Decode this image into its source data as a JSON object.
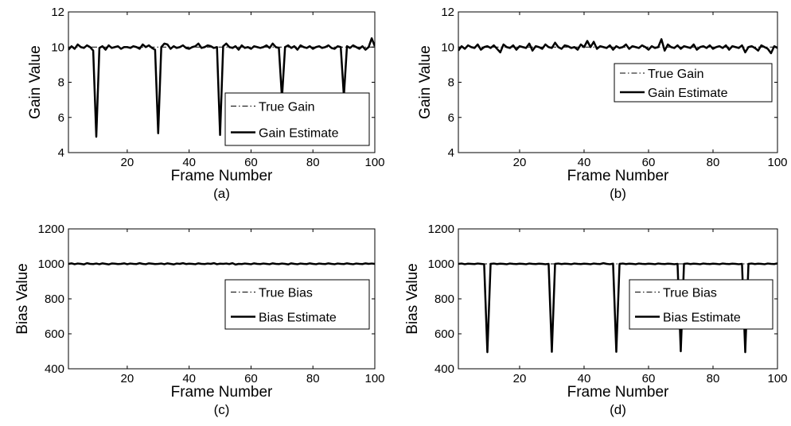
{
  "chart_data": [
    {
      "type": "line",
      "caption": "(a)",
      "xlabel": "Frame Number",
      "ylabel": "Gain Value",
      "xlim": [
        1,
        100
      ],
      "ylim": [
        4,
        12
      ],
      "xticks": [
        20,
        40,
        60,
        80,
        100
      ],
      "yticks": [
        4,
        6,
        8,
        10,
        12
      ],
      "xtick_labels": [
        "20",
        "40",
        "60",
        "80",
        "100"
      ],
      "ytick_labels": [
        "4",
        "6",
        "8",
        "10",
        "12"
      ],
      "grid": false,
      "legend_position": "lower-right",
      "series": [
        {
          "name": "True Gain",
          "style": "dash-dot",
          "width": 1,
          "x": [
            1,
            100
          ],
          "y": [
            10,
            10
          ]
        },
        {
          "name": "Gain Estimate",
          "style": "solid",
          "width": 2.5,
          "x": [
            1,
            2,
            3,
            4,
            5,
            6,
            7,
            8,
            9,
            10,
            11,
            12,
            13,
            14,
            15,
            16,
            17,
            18,
            19,
            20,
            21,
            22,
            23,
            24,
            25,
            26,
            27,
            28,
            29,
            30,
            31,
            32,
            33,
            34,
            35,
            36,
            37,
            38,
            39,
            40,
            41,
            42,
            43,
            44,
            45,
            46,
            47,
            48,
            49,
            50,
            51,
            52,
            53,
            54,
            55,
            56,
            57,
            58,
            59,
            60,
            61,
            62,
            63,
            64,
            65,
            66,
            67,
            68,
            69,
            70,
            71,
            72,
            73,
            74,
            75,
            76,
            77,
            78,
            79,
            80,
            81,
            82,
            83,
            84,
            85,
            86,
            87,
            88,
            89,
            90,
            91,
            92,
            93,
            94,
            95,
            96,
            97,
            98,
            99,
            100
          ],
          "y": [
            9.85,
            10.05,
            9.9,
            10.15,
            10.0,
            9.95,
            10.1,
            10.0,
            9.8,
            4.9,
            9.95,
            10.05,
            9.85,
            10.1,
            9.95,
            10.0,
            10.05,
            9.9,
            10.0,
            10.0,
            9.95,
            10.05,
            10.0,
            9.9,
            10.15,
            10.0,
            10.1,
            9.95,
            9.85,
            5.1,
            10.0,
            10.2,
            10.15,
            9.9,
            10.05,
            9.95,
            10.0,
            10.1,
            9.95,
            9.9,
            10.0,
            10.05,
            10.2,
            9.95,
            10.0,
            10.1,
            10.05,
            9.95,
            10.0,
            5.0,
            10.05,
            10.2,
            10.0,
            9.95,
            10.05,
            9.85,
            10.1,
            9.95,
            10.0,
            9.9,
            10.05,
            10.0,
            9.95,
            10.0,
            10.1,
            9.95,
            10.2,
            10.0,
            9.95,
            7.1,
            10.0,
            10.1,
            9.95,
            10.05,
            9.85,
            10.1,
            10.0,
            9.95,
            10.05,
            9.9,
            10.0,
            10.05,
            9.95,
            10.0,
            10.1,
            9.95,
            9.9,
            10.05,
            10.0,
            7.2,
            10.05,
            9.95,
            10.1,
            10.0,
            9.9,
            10.05,
            9.85,
            10.0,
            10.5,
            10.05
          ]
        }
      ]
    },
    {
      "type": "line",
      "caption": "(b)",
      "xlabel": "Frame Number",
      "ylabel": "Gain Value",
      "xlim": [
        1,
        100
      ],
      "ylim": [
        4,
        12
      ],
      "xticks": [
        20,
        40,
        60,
        80,
        100
      ],
      "yticks": [
        4,
        6,
        8,
        10,
        12
      ],
      "xtick_labels": [
        "20",
        "40",
        "60",
        "80",
        "100"
      ],
      "ytick_labels": [
        "4",
        "6",
        "8",
        "10",
        "12"
      ],
      "grid": false,
      "legend_position": "right",
      "series": [
        {
          "name": "True Gain",
          "style": "dash-dot",
          "width": 1,
          "x": [
            1,
            100
          ],
          "y": [
            10,
            10
          ]
        },
        {
          "name": "Gain Estimate",
          "style": "solid",
          "width": 2.5,
          "x": [
            1,
            2,
            3,
            4,
            5,
            6,
            7,
            8,
            9,
            10,
            11,
            12,
            13,
            14,
            15,
            16,
            17,
            18,
            19,
            20,
            21,
            22,
            23,
            24,
            25,
            26,
            27,
            28,
            29,
            30,
            31,
            32,
            33,
            34,
            35,
            36,
            37,
            38,
            39,
            40,
            41,
            42,
            43,
            44,
            45,
            46,
            47,
            48,
            49,
            50,
            51,
            52,
            53,
            54,
            55,
            56,
            57,
            58,
            59,
            60,
            61,
            62,
            63,
            64,
            65,
            66,
            67,
            68,
            69,
            70,
            71,
            72,
            73,
            74,
            75,
            76,
            77,
            78,
            79,
            80,
            81,
            82,
            83,
            84,
            85,
            86,
            87,
            88,
            89,
            90,
            91,
            92,
            93,
            94,
            95,
            96,
            97,
            98,
            99,
            100
          ],
          "y": [
            9.8,
            10.05,
            9.9,
            10.1,
            10.0,
            9.95,
            10.15,
            9.85,
            10.0,
            10.05,
            9.95,
            10.1,
            9.9,
            9.7,
            10.15,
            10.0,
            9.95,
            10.1,
            9.85,
            10.05,
            10.0,
            9.95,
            10.2,
            9.8,
            10.05,
            10.0,
            9.9,
            10.15,
            10.0,
            9.95,
            10.25,
            10.0,
            9.9,
            10.1,
            10.05,
            9.95,
            10.0,
            9.85,
            10.15,
            10.0,
            10.35,
            10.0,
            10.3,
            9.9,
            10.05,
            10.0,
            9.95,
            10.1,
            9.85,
            10.05,
            9.95,
            10.0,
            10.15,
            9.9,
            10.05,
            10.0,
            9.95,
            10.1,
            10.0,
            9.85,
            10.05,
            9.95,
            10.0,
            10.45,
            9.8,
            10.15,
            10.0,
            9.95,
            10.1,
            9.9,
            10.05,
            10.0,
            9.95,
            10.15,
            9.85,
            10.0,
            10.05,
            9.95,
            10.1,
            9.9,
            10.0,
            10.05,
            9.95,
            10.1,
            9.85,
            10.05,
            10.0,
            9.95,
            10.1,
            9.7,
            10.0,
            10.05,
            9.95,
            9.8,
            10.1,
            10.0,
            9.9,
            9.65,
            10.05,
            9.95
          ]
        }
      ]
    },
    {
      "type": "line",
      "caption": "(c)",
      "xlabel": "Frame Number",
      "ylabel": "Bias Value",
      "xlim": [
        1,
        100
      ],
      "ylim": [
        400,
        1200
      ],
      "xticks": [
        20,
        40,
        60,
        80,
        100
      ],
      "yticks": [
        400,
        600,
        800,
        1000,
        1200
      ],
      "xtick_labels": [
        "20",
        "40",
        "60",
        "80",
        "100"
      ],
      "ytick_labels": [
        "400",
        "600",
        "800",
        "1000",
        "1200"
      ],
      "grid": false,
      "legend_position": "right",
      "series": [
        {
          "name": "True Bias",
          "style": "dash-dot",
          "width": 1,
          "x": [
            1,
            100
          ],
          "y": [
            1000,
            1000
          ]
        },
        {
          "name": "Bias Estimate",
          "style": "solid",
          "width": 2.5,
          "x": [
            1,
            2,
            3,
            4,
            5,
            6,
            7,
            8,
            9,
            10,
            11,
            12,
            13,
            14,
            15,
            16,
            17,
            18,
            19,
            20,
            21,
            22,
            23,
            24,
            25,
            26,
            27,
            28,
            29,
            30,
            31,
            32,
            33,
            34,
            35,
            36,
            37,
            38,
            39,
            40,
            41,
            42,
            43,
            44,
            45,
            46,
            47,
            48,
            49,
            50,
            51,
            52,
            53,
            54,
            55,
            56,
            57,
            58,
            59,
            60,
            61,
            62,
            63,
            64,
            65,
            66,
            67,
            68,
            69,
            70,
            71,
            72,
            73,
            74,
            75,
            76,
            77,
            78,
            79,
            80,
            81,
            82,
            83,
            84,
            85,
            86,
            87,
            88,
            89,
            90,
            91,
            92,
            93,
            94,
            95,
            96,
            97,
            98,
            99,
            100
          ],
          "y": [
            1000,
            1003,
            998,
            1002,
            1000,
            997,
            1004,
            1000,
            999,
            1002,
            998,
            1003,
            1000,
            997,
            1002,
            1001,
            999,
            1000,
            1003,
            998,
            1002,
            1000,
            999,
            1004,
            1000,
            998,
            1003,
            1001,
            999,
            1000,
            1002,
            998,
            1003,
            1000,
            997,
            1002,
            1000,
            1004,
            999,
            1001,
            1000,
            998,
            1003,
            1000,
            999,
            1002,
            1000,
            1004,
            998,
            1001,
            1000,
            1002,
            999,
            1004,
            996,
            1000,
            999,
            1002,
            1000,
            998,
            1003,
            1000,
            999,
            1002,
            1000,
            998,
            1003,
            1000,
            999,
            1002,
            1000,
            997,
            1003,
            1000,
            998,
            1002,
            1000,
            999,
            1003,
            1000,
            998,
            1002,
            1000,
            999,
            1003,
            1000,
            998,
            1002,
            1000,
            999,
            1003,
            1000,
            998,
            1002,
            1000,
            999,
            1003,
            1000,
            1002,
            1000
          ]
        }
      ]
    },
    {
      "type": "line",
      "caption": "(d)",
      "xlabel": "Frame Number",
      "ylabel": "Bias Value",
      "xlim": [
        1,
        100
      ],
      "ylim": [
        400,
        1200
      ],
      "xticks": [
        20,
        40,
        60,
        80,
        100
      ],
      "yticks": [
        400,
        600,
        800,
        1000,
        1200
      ],
      "xtick_labels": [
        "20",
        "40",
        "60",
        "80",
        "100"
      ],
      "ytick_labels": [
        "400",
        "600",
        "800",
        "1000",
        "1200"
      ],
      "grid": false,
      "legend_position": "right",
      "series": [
        {
          "name": "True Bias",
          "style": "dash-dot",
          "width": 1,
          "x": [
            1,
            100
          ],
          "y": [
            1000,
            1000
          ]
        },
        {
          "name": "Bias Estimate",
          "style": "solid",
          "width": 2.5,
          "x": [
            1,
            2,
            3,
            4,
            5,
            6,
            7,
            8,
            9,
            10,
            11,
            12,
            13,
            14,
            15,
            16,
            17,
            18,
            19,
            20,
            21,
            22,
            23,
            24,
            25,
            26,
            27,
            28,
            29,
            30,
            31,
            32,
            33,
            34,
            35,
            36,
            37,
            38,
            39,
            40,
            41,
            42,
            43,
            44,
            45,
            46,
            47,
            48,
            49,
            50,
            51,
            52,
            53,
            54,
            55,
            56,
            57,
            58,
            59,
            60,
            61,
            62,
            63,
            64,
            65,
            66,
            67,
            68,
            69,
            70,
            71,
            72,
            73,
            74,
            75,
            76,
            77,
            78,
            79,
            80,
            81,
            82,
            83,
            84,
            85,
            86,
            87,
            88,
            89,
            90,
            91,
            92,
            93,
            94,
            95,
            96,
            97,
            98,
            99,
            100
          ],
          "y": [
            1000,
            1002,
            998,
            1001,
            1000,
            999,
            1002,
            1000,
            998,
            495,
            1000,
            1002,
            999,
            1001,
            1000,
            998,
            1002,
            1000,
            999,
            1001,
            1000,
            998,
            1002,
            1000,
            999,
            1001,
            1000,
            998,
            1000,
            497,
            1000,
            1002,
            999,
            1001,
            1000,
            998,
            1002,
            1000,
            999,
            1001,
            1000,
            998,
            1002,
            1000,
            999,
            1004,
            1000,
            998,
            1001,
            497,
            1000,
            1002,
            999,
            1001,
            1000,
            998,
            1002,
            1000,
            999,
            1001,
            1000,
            998,
            1002,
            1000,
            999,
            1001,
            1000,
            998,
            1000,
            500,
            1000,
            1002,
            999,
            1001,
            1000,
            998,
            1002,
            1000,
            999,
            1001,
            1000,
            998,
            1002,
            1000,
            999,
            1001,
            1000,
            998,
            1000,
            495,
            1000,
            1002,
            999,
            1001,
            1000,
            998,
            1002,
            1000,
            999,
            1003
          ]
        }
      ]
    }
  ]
}
